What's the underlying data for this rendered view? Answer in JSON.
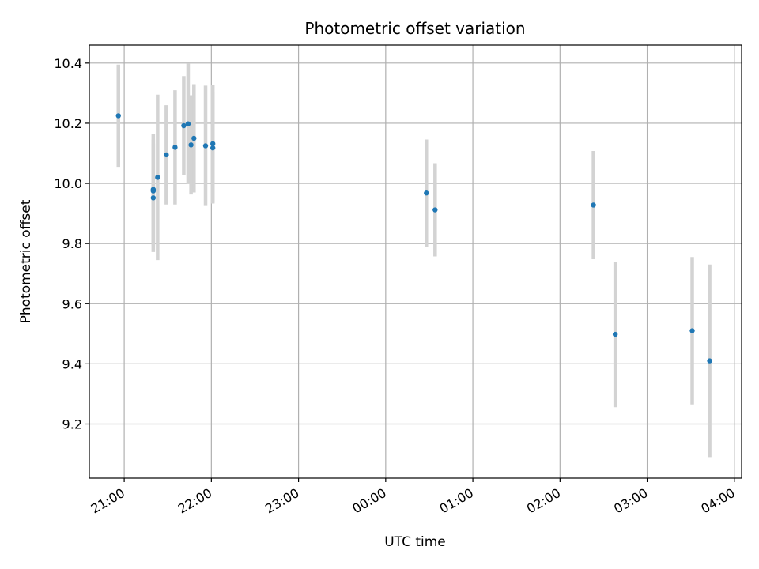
{
  "chart_data": {
    "type": "scatter",
    "title": "Photometric offset variation",
    "xlabel": "UTC time",
    "ylabel": "Photometric offset",
    "x_axis_kind": "time",
    "xlim": [
      "20:36",
      "04:05"
    ],
    "ylim": [
      9.02,
      10.46
    ],
    "x_ticks": [
      "21:00",
      "22:00",
      "23:00",
      "00:00",
      "01:00",
      "02:00",
      "03:00",
      "04:00"
    ],
    "y_ticks": [
      9.2,
      9.4,
      9.6,
      9.8,
      10.0,
      10.2,
      10.4
    ],
    "y_tick_labels": [
      "9.2",
      "9.4",
      "9.6",
      "9.8",
      "10.0",
      "10.2",
      "10.4"
    ],
    "grid": true,
    "marker_color": "#1f77b4",
    "errorbar_color": "#d3d3d3",
    "points": [
      {
        "t": "20:56",
        "y": 10.225,
        "err": 0.17
      },
      {
        "t": "21:20",
        "y": 9.952,
        "err": 0.18
      },
      {
        "t": "21:20",
        "y": 9.98,
        "err": 0.185
      },
      {
        "t": "21:20",
        "y": 9.975,
        "err": 0.17
      },
      {
        "t": "21:23",
        "y": 10.02,
        "err": 0.275
      },
      {
        "t": "21:29",
        "y": 10.095,
        "err": 0.165
      },
      {
        "t": "21:35",
        "y": 10.12,
        "err": 0.19
      },
      {
        "t": "21:41",
        "y": 10.192,
        "err": 0.165
      },
      {
        "t": "21:44",
        "y": 10.198,
        "err": 0.2
      },
      {
        "t": "21:46",
        "y": 10.128,
        "err": 0.165
      },
      {
        "t": "21:48",
        "y": 10.15,
        "err": 0.18
      },
      {
        "t": "21:56",
        "y": 10.125,
        "err": 0.2
      },
      {
        "t": "22:01",
        "y": 10.132,
        "err": 0.195
      },
      {
        "t": "22:01",
        "y": 10.118,
        "err": 0.185
      },
      {
        "t": "00:28",
        "y": 9.968,
        "err": 0.178
      },
      {
        "t": "00:34",
        "y": 9.912,
        "err": 0.155
      },
      {
        "t": "02:23",
        "y": 9.928,
        "err": 0.18
      },
      {
        "t": "02:38",
        "y": 9.498,
        "err": 0.242
      },
      {
        "t": "03:31",
        "y": 9.51,
        "err": 0.245
      },
      {
        "t": "03:43",
        "y": 9.41,
        "err": 0.32
      }
    ]
  }
}
